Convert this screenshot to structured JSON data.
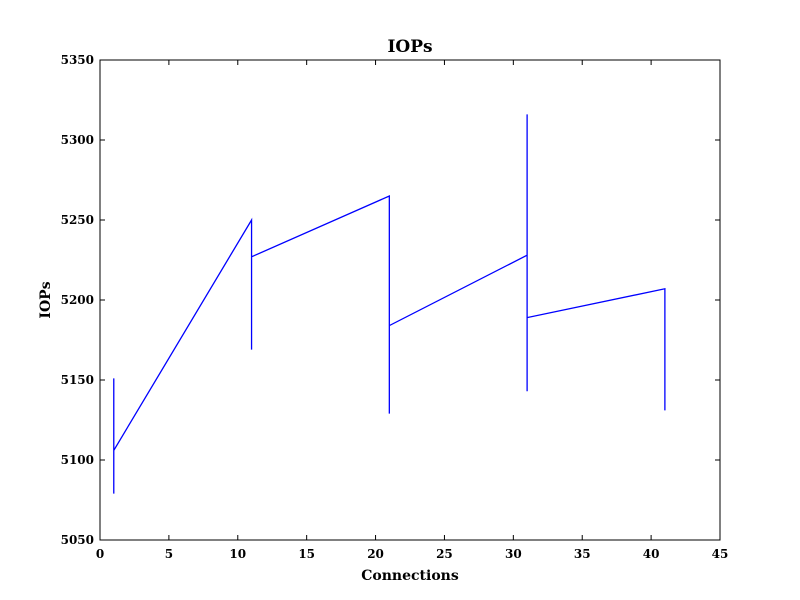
{
  "chart_data": {
    "type": "line",
    "title": "IOPs",
    "xlabel": "Connections",
    "ylabel": "IOPs",
    "xlim": [
      0,
      45
    ],
    "ylim": [
      5050,
      5350
    ],
    "xticks": [
      0,
      5,
      10,
      15,
      20,
      25,
      30,
      35,
      40,
      45
    ],
    "yticks": [
      5050,
      5100,
      5150,
      5200,
      5250,
      5300,
      5350
    ],
    "grid": false,
    "series": [
      {
        "color": "#0000ff",
        "x": [
          1,
          1,
          1,
          1,
          11,
          11,
          11,
          11,
          21,
          21,
          21,
          21,
          21,
          31,
          31,
          31,
          31,
          41,
          41,
          41,
          41
        ],
        "y": [
          5151,
          5079,
          5100,
          5106,
          5250,
          5169,
          5210,
          5227,
          5265,
          5142,
          5165,
          5129,
          5184,
          5228,
          5143,
          5316,
          5189,
          5207,
          5131,
          5187,
          5160
        ]
      }
    ]
  }
}
